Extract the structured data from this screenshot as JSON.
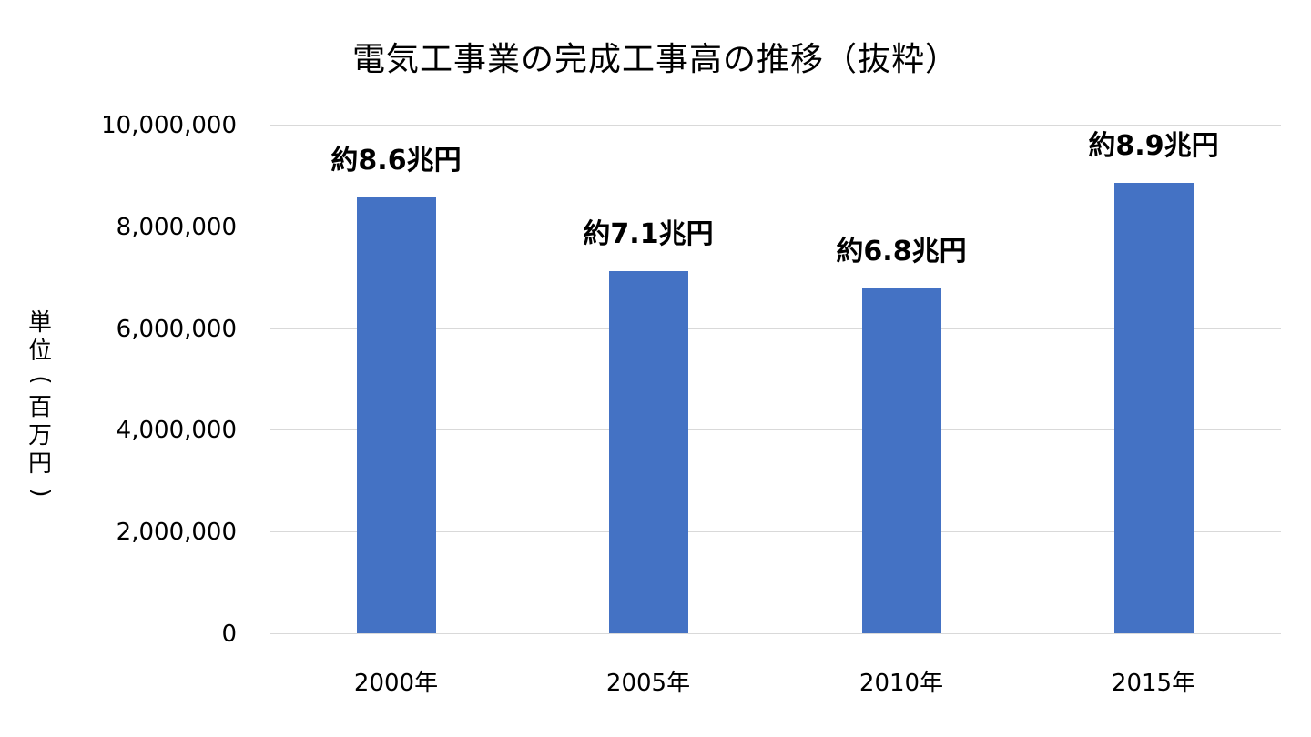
{
  "chart_data": {
    "type": "bar",
    "title": "電気工事業の完成工事高の推移（抜粋）",
    "xlabel": "",
    "ylabel": "単位(百万円)",
    "categories": [
      "2000年",
      "2005年",
      "2010年",
      "2015年"
    ],
    "values": [
      8570000,
      7120000,
      6780000,
      8860000
    ],
    "data_labels": [
      "約8.6兆円",
      "約7.1兆円",
      "約6.8兆円",
      "約8.9兆円"
    ],
    "ylim": [
      0,
      10000000
    ],
    "yticks": [
      "0",
      "2,000,000",
      "4,000,000",
      "6,000,000",
      "8,000,000",
      "10,000,000"
    ],
    "grid": true,
    "legend": null,
    "bar_color": "#4472c4"
  },
  "ylabel_chars": [
    "単",
    "位",
    "(",
    "百",
    "万",
    "円",
    ")"
  ]
}
